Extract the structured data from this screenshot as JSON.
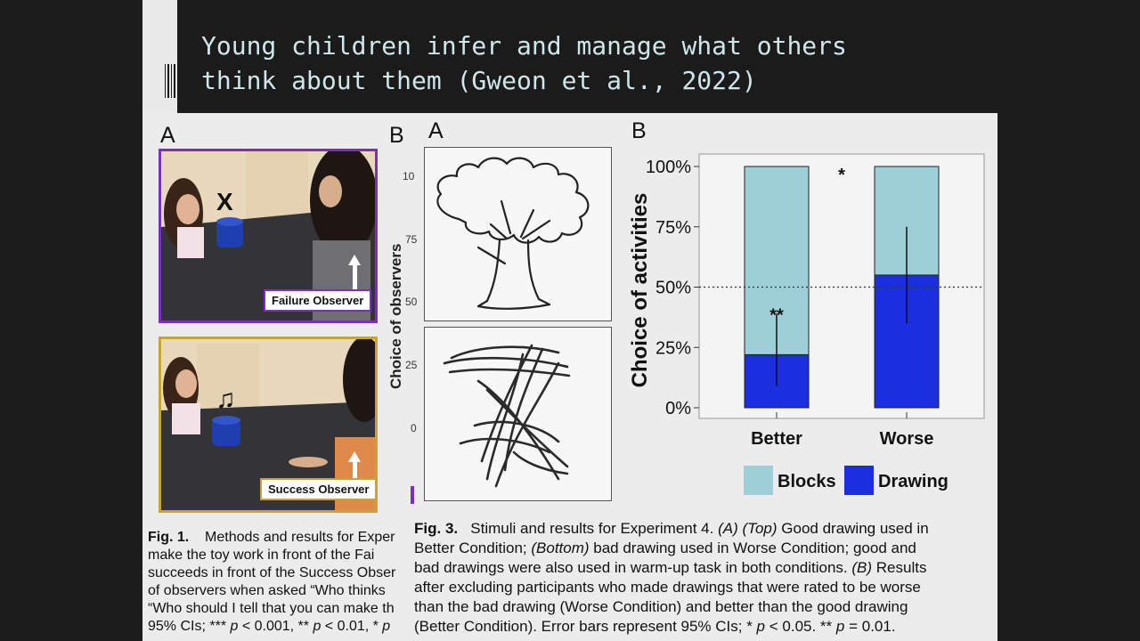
{
  "slide": {
    "title_line1": "Young children infer and manage what others",
    "title_line2": "think about them (Gweon et al., 2022)"
  },
  "fig1": {
    "panel_a": "A",
    "panel_b": "B",
    "failure_label": "Failure Observer",
    "success_label": "Success Observer",
    "failure_mark": "X",
    "success_mark": "♫",
    "cut_axis_label": "Choice of observers",
    "cut_ticks": [
      "10",
      "75",
      "50",
      "25",
      "0"
    ],
    "caption_lines": [
      "Fig. 1.    Methods and results for Exper",
      "make the toy work in front of the Fai",
      "succeeds in front of the Success Obser",
      "of observers when asked “Who thinks",
      "“Who should I tell that you can make th",
      "95% CIs; *** p < 0.001, ** p < 0.01, * p"
    ]
  },
  "fig3": {
    "panel_a": "A",
    "panel_b": "B",
    "caption_label": "Fig. 3.",
    "caption_lines": [
      "Stimuli and results for Experiment 4. (A) (Top) Good drawing used in",
      "Better Condition; (Bottom) bad drawing used in Worse Condition; good and",
      "bad drawings were also used in warm-up task in both conditions. (B) Results",
      "after excluding participants who made drawings that were rated to be worse",
      "than the bad drawing (Worse Condition) and better than the good drawing",
      "(Better Condition). Error bars represent 95% CIs; * p < 0.05. ** p = 0.01."
    ]
  },
  "chart_data": {
    "type": "bar",
    "stacked": true,
    "categories": [
      "Better",
      "Worse"
    ],
    "series": [
      {
        "name": "Drawing",
        "values": [
          22,
          55
        ],
        "color": "#1c2fe0"
      },
      {
        "name": "Blocks",
        "values": [
          78,
          45
        ],
        "color": "#9dd0d6"
      }
    ],
    "error_bars": [
      [
        9,
        39
      ],
      [
        35,
        75
      ]
    ],
    "ylabel": "Choice of activities",
    "yticks": [
      "0%",
      "25%",
      "50%",
      "75%",
      "100%"
    ],
    "ylim": [
      0,
      100
    ],
    "reference_line": 50,
    "annotations": {
      "within_better": "**",
      "between": "*"
    },
    "legend_order": [
      "Blocks",
      "Drawing"
    ],
    "legend_position": "bottom",
    "grid": false
  }
}
